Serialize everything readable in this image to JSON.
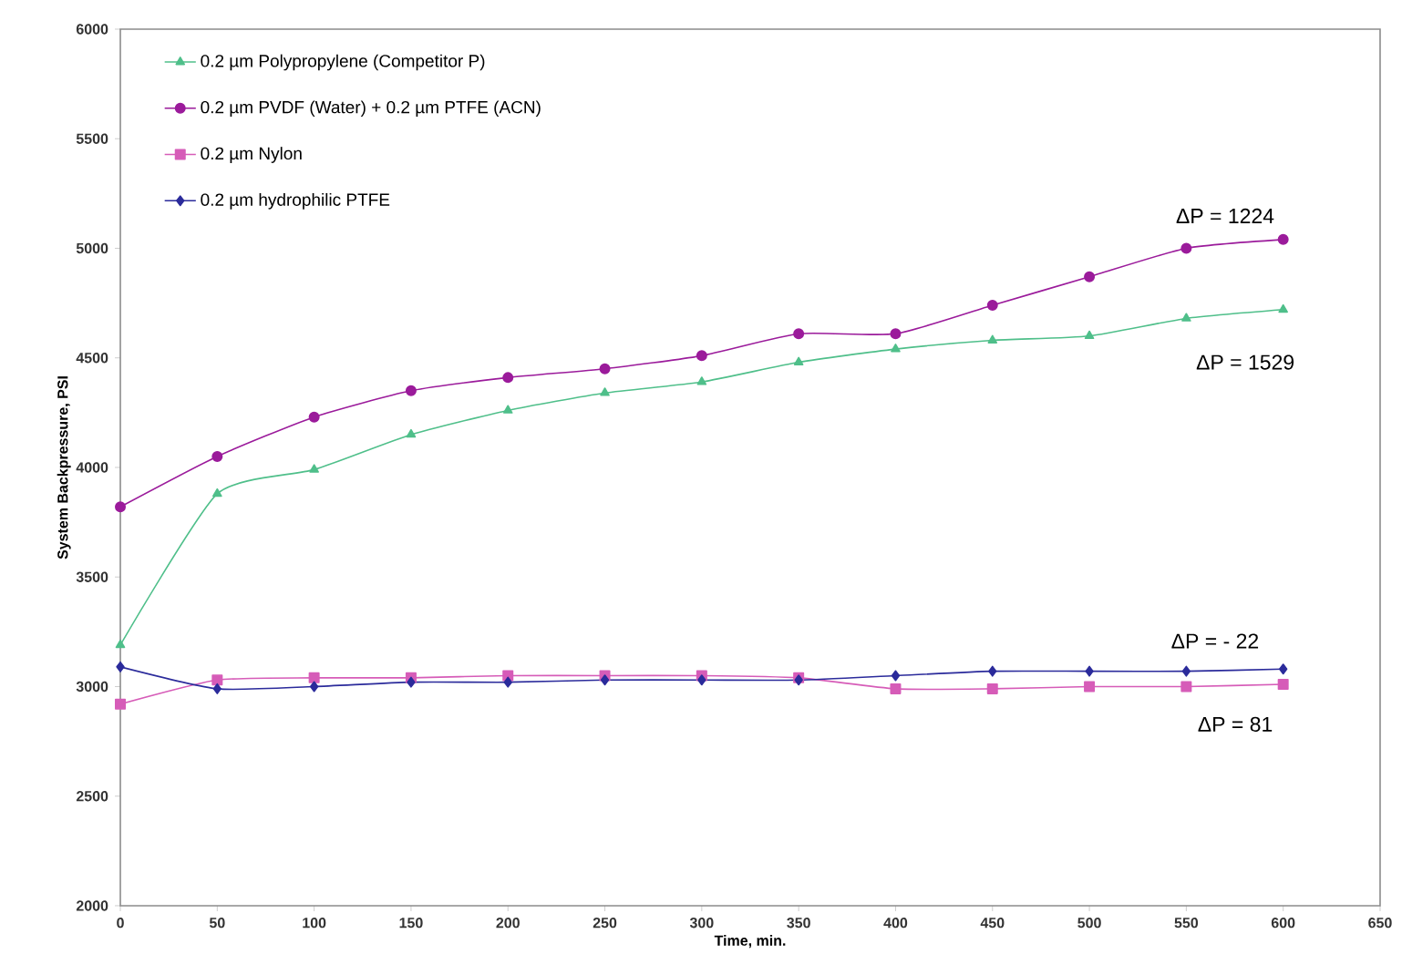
{
  "chart_data": {
    "type": "line",
    "xlabel": "Time, min.",
    "ylabel": "System Backpressure, PSI",
    "x": [
      0,
      50,
      100,
      150,
      200,
      250,
      300,
      350,
      400,
      450,
      500,
      550,
      600
    ],
    "series": [
      {
        "name": "0.2 µm Polypropylene (Competitor P)",
        "color": "#4fbf8a",
        "marker": "triangle",
        "values": [
          3190,
          3880,
          3990,
          4150,
          4260,
          4340,
          4390,
          4480,
          4540,
          4580,
          4600,
          4680,
          4720
        ]
      },
      {
        "name": "0.2 µm PVDF (Water) + 0.2 µm PTFE (ACN)",
        "color": "#9b1b9b",
        "marker": "circle",
        "values": [
          3820,
          4050,
          4230,
          4350,
          4410,
          4450,
          4510,
          4610,
          4610,
          4740,
          4870,
          5000,
          5040
        ]
      },
      {
        "name": "0.2 µm Nylon",
        "color": "#d65cb8",
        "marker": "square",
        "values": [
          2920,
          3030,
          3040,
          3040,
          3050,
          3050,
          3050,
          3040,
          2990,
          2990,
          3000,
          3000,
          3010
        ]
      },
      {
        "name": "0.2 µm hydrophilic PTFE",
        "color": "#2b2b9b",
        "marker": "diamond",
        "values": [
          3090,
          2990,
          3000,
          3020,
          3020,
          3030,
          3030,
          3030,
          3050,
          3070,
          3070,
          3070,
          3080
        ]
      }
    ],
    "annotations": [
      "ΔP = 1224",
      "ΔP = 1529",
      "ΔP = - 22",
      "ΔP = 81"
    ],
    "xlim": [
      0,
      650
    ],
    "ylim": [
      2000,
      6000
    ],
    "xticks": [
      0,
      50,
      100,
      150,
      200,
      250,
      300,
      350,
      400,
      450,
      500,
      550,
      600,
      650
    ],
    "yticks": [
      2000,
      2500,
      3000,
      3500,
      4000,
      4500,
      5000,
      5500,
      6000
    ],
    "grid": false,
    "legend": "top left",
    "line_style": "solid"
  }
}
